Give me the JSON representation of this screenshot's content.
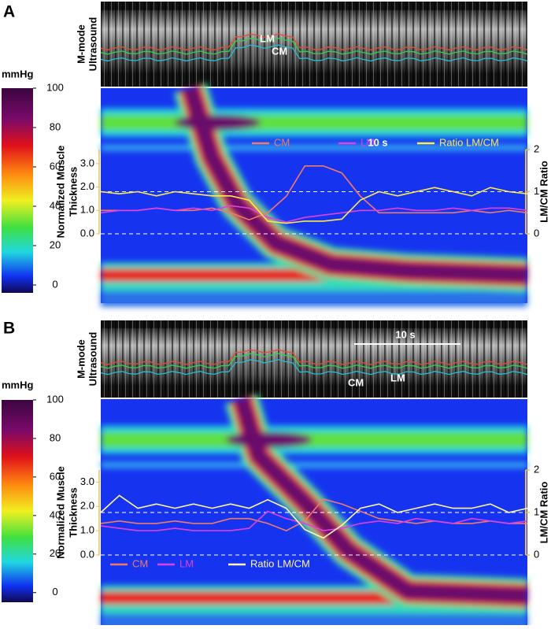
{
  "chart_data": [
    {
      "type": "line",
      "panel_label": "A",
      "ultrasound_title": [
        "M-mode",
        "Ultrasound"
      ],
      "ultrasound_annotations": [
        "LM",
        "CM"
      ],
      "scale_bar": "10 s",
      "colorbar": {
        "title": "mmHg",
        "lim": [
          -4,
          100
        ],
        "ticks": [
          0,
          20,
          40,
          60,
          80,
          100
        ]
      },
      "ylabel": [
        "Normalized Muscle",
        "Thickness"
      ],
      "y2label": "LM/CM Ratio",
      "ylim": [
        0,
        3.6
      ],
      "yticks": [
        {
          "value": 0,
          "label": "0.0"
        },
        {
          "value": 1,
          "label": "1.0"
        },
        {
          "value": 2,
          "label": "2.0"
        },
        {
          "value": 3,
          "label": "3.0"
        }
      ],
      "y2lim": [
        0,
        2
      ],
      "y2ticks": [
        0,
        1,
        2
      ],
      "series": [
        {
          "name": "CM",
          "color": "#f07a6a",
          "values": [
            1.0,
            1.0,
            1.0,
            1.1,
            1.0,
            1.0,
            1.1,
            0.9,
            0.6,
            0.9,
            1.6,
            2.9,
            2.9,
            2.6,
            1.6,
            0.9,
            0.9,
            0.9,
            0.9,
            0.9,
            1.0,
            0.9,
            1.0,
            0.9
          ]
        },
        {
          "name": "LM",
          "color": "#e040e0",
          "values": [
            0.9,
            1.0,
            1.0,
            1.1,
            1.0,
            1.1,
            1.0,
            1.2,
            1.1,
            0.7,
            0.5,
            0.7,
            0.8,
            0.9,
            1.0,
            1.0,
            1.1,
            1.0,
            1.0,
            1.1,
            1.0,
            1.1,
            1.1,
            1.0
          ]
        },
        {
          "name": "Ratio LM/CM",
          "color": "#ffe94a",
          "axis": "y2",
          "values": [
            1.0,
            0.95,
            1.0,
            0.9,
            1.0,
            0.95,
            0.9,
            0.9,
            0.8,
            0.3,
            0.25,
            0.3,
            0.3,
            0.35,
            0.8,
            1.0,
            0.9,
            1.0,
            1.1,
            1.0,
            0.9,
            1.1,
            1.0,
            0.95
          ]
        }
      ]
    },
    {
      "type": "line",
      "panel_label": "B",
      "ultrasound_title": [
        "M-mode",
        "Ultrasound"
      ],
      "ultrasound_annotations": [
        "CM",
        "LM"
      ],
      "scale_bar": "10 s",
      "colorbar": {
        "title": "mmHg",
        "lim": [
          -5,
          100
        ],
        "ticks": [
          0,
          20,
          40,
          60,
          80,
          100
        ]
      },
      "ylabel": [
        "Normalized Muscle",
        "Thickness"
      ],
      "y2label": "LM/CM Ratio",
      "ylim": [
        0,
        3.5
      ],
      "yticks": [
        {
          "value": 0,
          "label": "0.0"
        },
        {
          "value": 1,
          "label": "1.0"
        },
        {
          "value": 2,
          "label": "2.0"
        },
        {
          "value": 3,
          "label": "3.0"
        }
      ],
      "y2lim": [
        0,
        2
      ],
      "y2ticks": [
        0,
        1,
        2
      ],
      "series": [
        {
          "name": "CM",
          "color": "#f07a6a",
          "values": [
            1.3,
            1.4,
            1.3,
            1.3,
            1.4,
            1.3,
            1.3,
            1.5,
            1.5,
            1.3,
            1.0,
            1.4,
            2.3,
            2.1,
            1.8,
            1.5,
            1.4,
            1.3,
            1.4,
            1.3,
            1.3,
            1.4,
            1.3,
            1.3
          ]
        },
        {
          "name": "LM",
          "color": "#e040e0",
          "values": [
            1.2,
            1.1,
            1.0,
            1.0,
            1.1,
            1.0,
            1.0,
            1.0,
            1.1,
            1.8,
            1.5,
            1.3,
            1.0,
            1.1,
            1.3,
            1.4,
            1.3,
            1.5,
            1.4,
            1.3,
            1.5,
            1.4,
            1.3,
            1.4
          ]
        },
        {
          "name": "Ratio LM/CM",
          "color": "#fff6a8",
          "axis": "y2",
          "values": [
            1.0,
            1.4,
            1.1,
            1.2,
            1.1,
            1.2,
            1.1,
            1.2,
            1.1,
            1.3,
            1.1,
            0.6,
            0.4,
            0.7,
            1.1,
            1.2,
            1.0,
            1.1,
            1.2,
            1.1,
            1.1,
            1.2,
            1.0,
            1.1
          ]
        }
      ]
    }
  ]
}
